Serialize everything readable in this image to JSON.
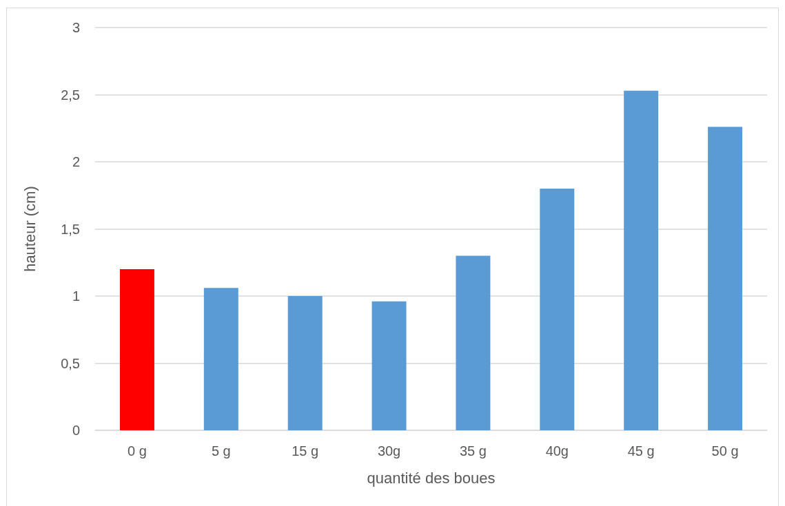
{
  "chart_data": {
    "type": "bar",
    "xlabel": "quantité des boues",
    "ylabel": "hauteur (cm)",
    "categories": [
      "0 g",
      "5 g",
      "15 g",
      "30g",
      "35 g",
      "40g",
      "45 g",
      "50 g"
    ],
    "values": [
      1.2,
      1.06,
      1.0,
      0.96,
      1.3,
      1.8,
      2.53,
      2.26
    ],
    "colors": [
      "#ff0000",
      "#5b9bd5",
      "#5b9bd5",
      "#5b9bd5",
      "#5b9bd5",
      "#5b9bd5",
      "#5b9bd5",
      "#5b9bd5"
    ],
    "ylim": [
      0,
      3
    ],
    "yticks": [
      0,
      {
        "value": 0.5,
        "label": "0,5"
      },
      1,
      {
        "value": 1.5,
        "label": "1,5"
      },
      2,
      {
        "value": 2.5,
        "label": "2,5"
      },
      3
    ],
    "grid": "y"
  }
}
